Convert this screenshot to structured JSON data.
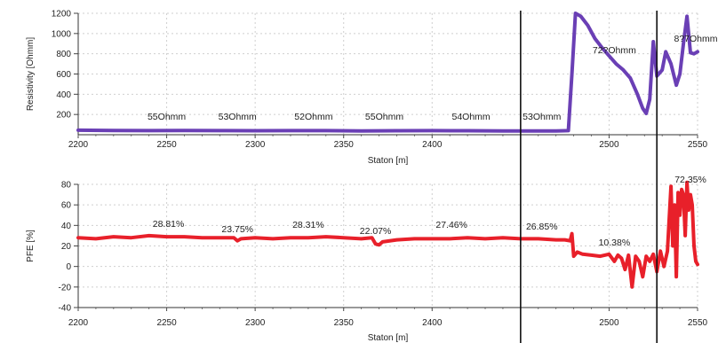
{
  "chart_data": [
    {
      "type": "line",
      "ylabel": "Resistivity [Ohmm]",
      "xlabel": "Staton [m]",
      "xlim": [
        2200,
        2550
      ],
      "ylim": [
        0,
        1200
      ],
      "xticks": [
        2200,
        2250,
        2300,
        2350,
        2400,
        2500,
        2550
      ],
      "yticks": [
        200,
        400,
        600,
        800,
        1000,
        1200
      ],
      "grid": "dashed",
      "color": "#6a3fb5",
      "series": [
        {
          "x": [
            2200,
            2220,
            2240,
            2260,
            2280,
            2300,
            2320,
            2340,
            2360,
            2380,
            2400,
            2420,
            2440,
            2460,
            2470,
            2477,
            2479,
            2481,
            2484,
            2488,
            2492,
            2496,
            2500,
            2504,
            2508,
            2512,
            2516,
            2519,
            2521,
            2523,
            2525,
            2527,
            2530,
            2532,
            2535,
            2538,
            2540,
            2542,
            2544,
            2546,
            2548,
            2550
          ],
          "y": [
            45,
            42,
            40,
            41,
            40,
            39,
            40,
            40,
            38,
            39,
            40,
            39,
            38,
            38,
            38,
            40,
            600,
            1200,
            1170,
            1080,
            950,
            860,
            780,
            700,
            640,
            560,
            400,
            260,
            210,
            350,
            920,
            580,
            640,
            820,
            700,
            490,
            600,
            900,
            1170,
            810,
            800,
            820
          ]
        }
      ],
      "annotations": [
        {
          "x": 2250,
          "text": "55Ohmm"
        },
        {
          "x": 2290,
          "text": "53Ohmm"
        },
        {
          "x": 2333,
          "text": "52Ohmm"
        },
        {
          "x": 2373,
          "text": "55Ohmm"
        },
        {
          "x": 2422,
          "text": "54Ohmm"
        },
        {
          "x": 2462,
          "text": "53Ohmm"
        },
        {
          "x": 2503,
          "text": "72?Ohmm"
        },
        {
          "x": 2549,
          "text": "8?7Ohmm"
        }
      ]
    },
    {
      "type": "line",
      "ylabel": "PFE [%]",
      "xlabel": "Staton [m]",
      "xlim": [
        2200,
        2550
      ],
      "ylim": [
        -40,
        80
      ],
      "xticks": [
        2200,
        2250,
        2300,
        2350,
        2400,
        2500,
        2550
      ],
      "yticks": [
        -40,
        -20,
        0,
        20,
        40,
        60,
        80
      ],
      "grid": "dashed",
      "color": "#e8202a",
      "series": [
        {
          "x": [
            2200,
            2210,
            2220,
            2230,
            2240,
            2250,
            2260,
            2270,
            2280,
            2288,
            2290,
            2292,
            2300,
            2310,
            2320,
            2330,
            2340,
            2350,
            2360,
            2366,
            2368,
            2370,
            2372,
            2380,
            2390,
            2400,
            2410,
            2420,
            2430,
            2440,
            2450,
            2460,
            2470,
            2475,
            2478,
            2479,
            2480,
            2482,
            2485,
            2490,
            2495,
            2500,
            2503,
            2505,
            2507,
            2509,
            2511,
            2513,
            2515,
            2517,
            2519,
            2521,
            2523,
            2525,
            2527,
            2529,
            2531,
            2533,
            2535,
            2536,
            2537,
            2538,
            2539,
            2540,
            2541,
            2542,
            2543,
            2544,
            2545,
            2546,
            2547,
            2548,
            2549,
            2550
          ],
          "y": [
            28,
            27,
            29,
            28,
            30,
            29,
            29,
            28,
            28,
            28,
            25,
            27,
            28,
            27,
            28,
            28,
            29,
            28,
            27,
            28,
            22,
            21,
            24,
            26,
            27,
            27,
            27,
            28,
            27,
            28,
            27,
            27,
            26,
            26,
            25,
            32,
            10,
            14,
            12,
            11,
            10,
            12,
            5,
            11,
            8,
            -3,
            11,
            -20,
            10,
            5,
            -10,
            10,
            5,
            12,
            -5,
            15,
            0,
            15,
            78,
            20,
            60,
            -10,
            72,
            50,
            75,
            70,
            30,
            82,
            55,
            70,
            60,
            20,
            5,
            2
          ]
        }
      ],
      "annotations": [
        {
          "x": 2251,
          "text": "28.81%"
        },
        {
          "x": 2290,
          "text": "23.75%"
        },
        {
          "x": 2330,
          "text": "28.31%"
        },
        {
          "x": 2368,
          "text": "22.07%"
        },
        {
          "x": 2411,
          "text": "27.46%"
        },
        {
          "x": 2462,
          "text": "26.85%"
        },
        {
          "x": 2503,
          "text": "10.38%"
        },
        {
          "x": 2546,
          "text": "72.35%"
        }
      ]
    }
  ],
  "markers": [
    2450,
    2527
  ]
}
